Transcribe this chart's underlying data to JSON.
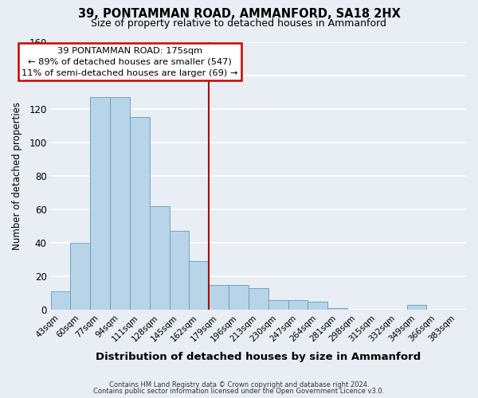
{
  "title": "39, PONTAMMAN ROAD, AMMANFORD, SA18 2HX",
  "subtitle": "Size of property relative to detached houses in Ammanford",
  "xlabel": "Distribution of detached houses by size in Ammanford",
  "ylabel": "Number of detached properties",
  "bin_labels": [
    "43sqm",
    "60sqm",
    "77sqm",
    "94sqm",
    "111sqm",
    "128sqm",
    "145sqm",
    "162sqm",
    "179sqm",
    "196sqm",
    "213sqm",
    "230sqm",
    "247sqm",
    "264sqm",
    "281sqm",
    "298sqm",
    "315sqm",
    "332sqm",
    "349sqm",
    "366sqm",
    "383sqm"
  ],
  "bar_heights": [
    11,
    40,
    127,
    127,
    115,
    62,
    47,
    29,
    15,
    15,
    13,
    6,
    6,
    5,
    1,
    0,
    0,
    0,
    3,
    0,
    0
  ],
  "bar_color": "#b8d4e8",
  "bar_edge_color": "#6699bb",
  "vline_x_index": 8,
  "vline_color": "#aa0000",
  "ylim": [
    0,
    160
  ],
  "yticks": [
    0,
    20,
    40,
    60,
    80,
    100,
    120,
    140,
    160
  ],
  "annotation_title": "39 PONTAMMAN ROAD: 175sqm",
  "annotation_line1": "← 89% of detached houses are smaller (547)",
  "annotation_line2": "11% of semi-detached houses are larger (69) →",
  "annotation_box_color": "#ffffff",
  "annotation_box_edge": "#cc0000",
  "footer1": "Contains HM Land Registry data © Crown copyright and database right 2024.",
  "footer2": "Contains public sector information licensed under the Open Government Licence v3.0.",
  "background_color": "#e8eef4",
  "grid_color": "#ffffff"
}
